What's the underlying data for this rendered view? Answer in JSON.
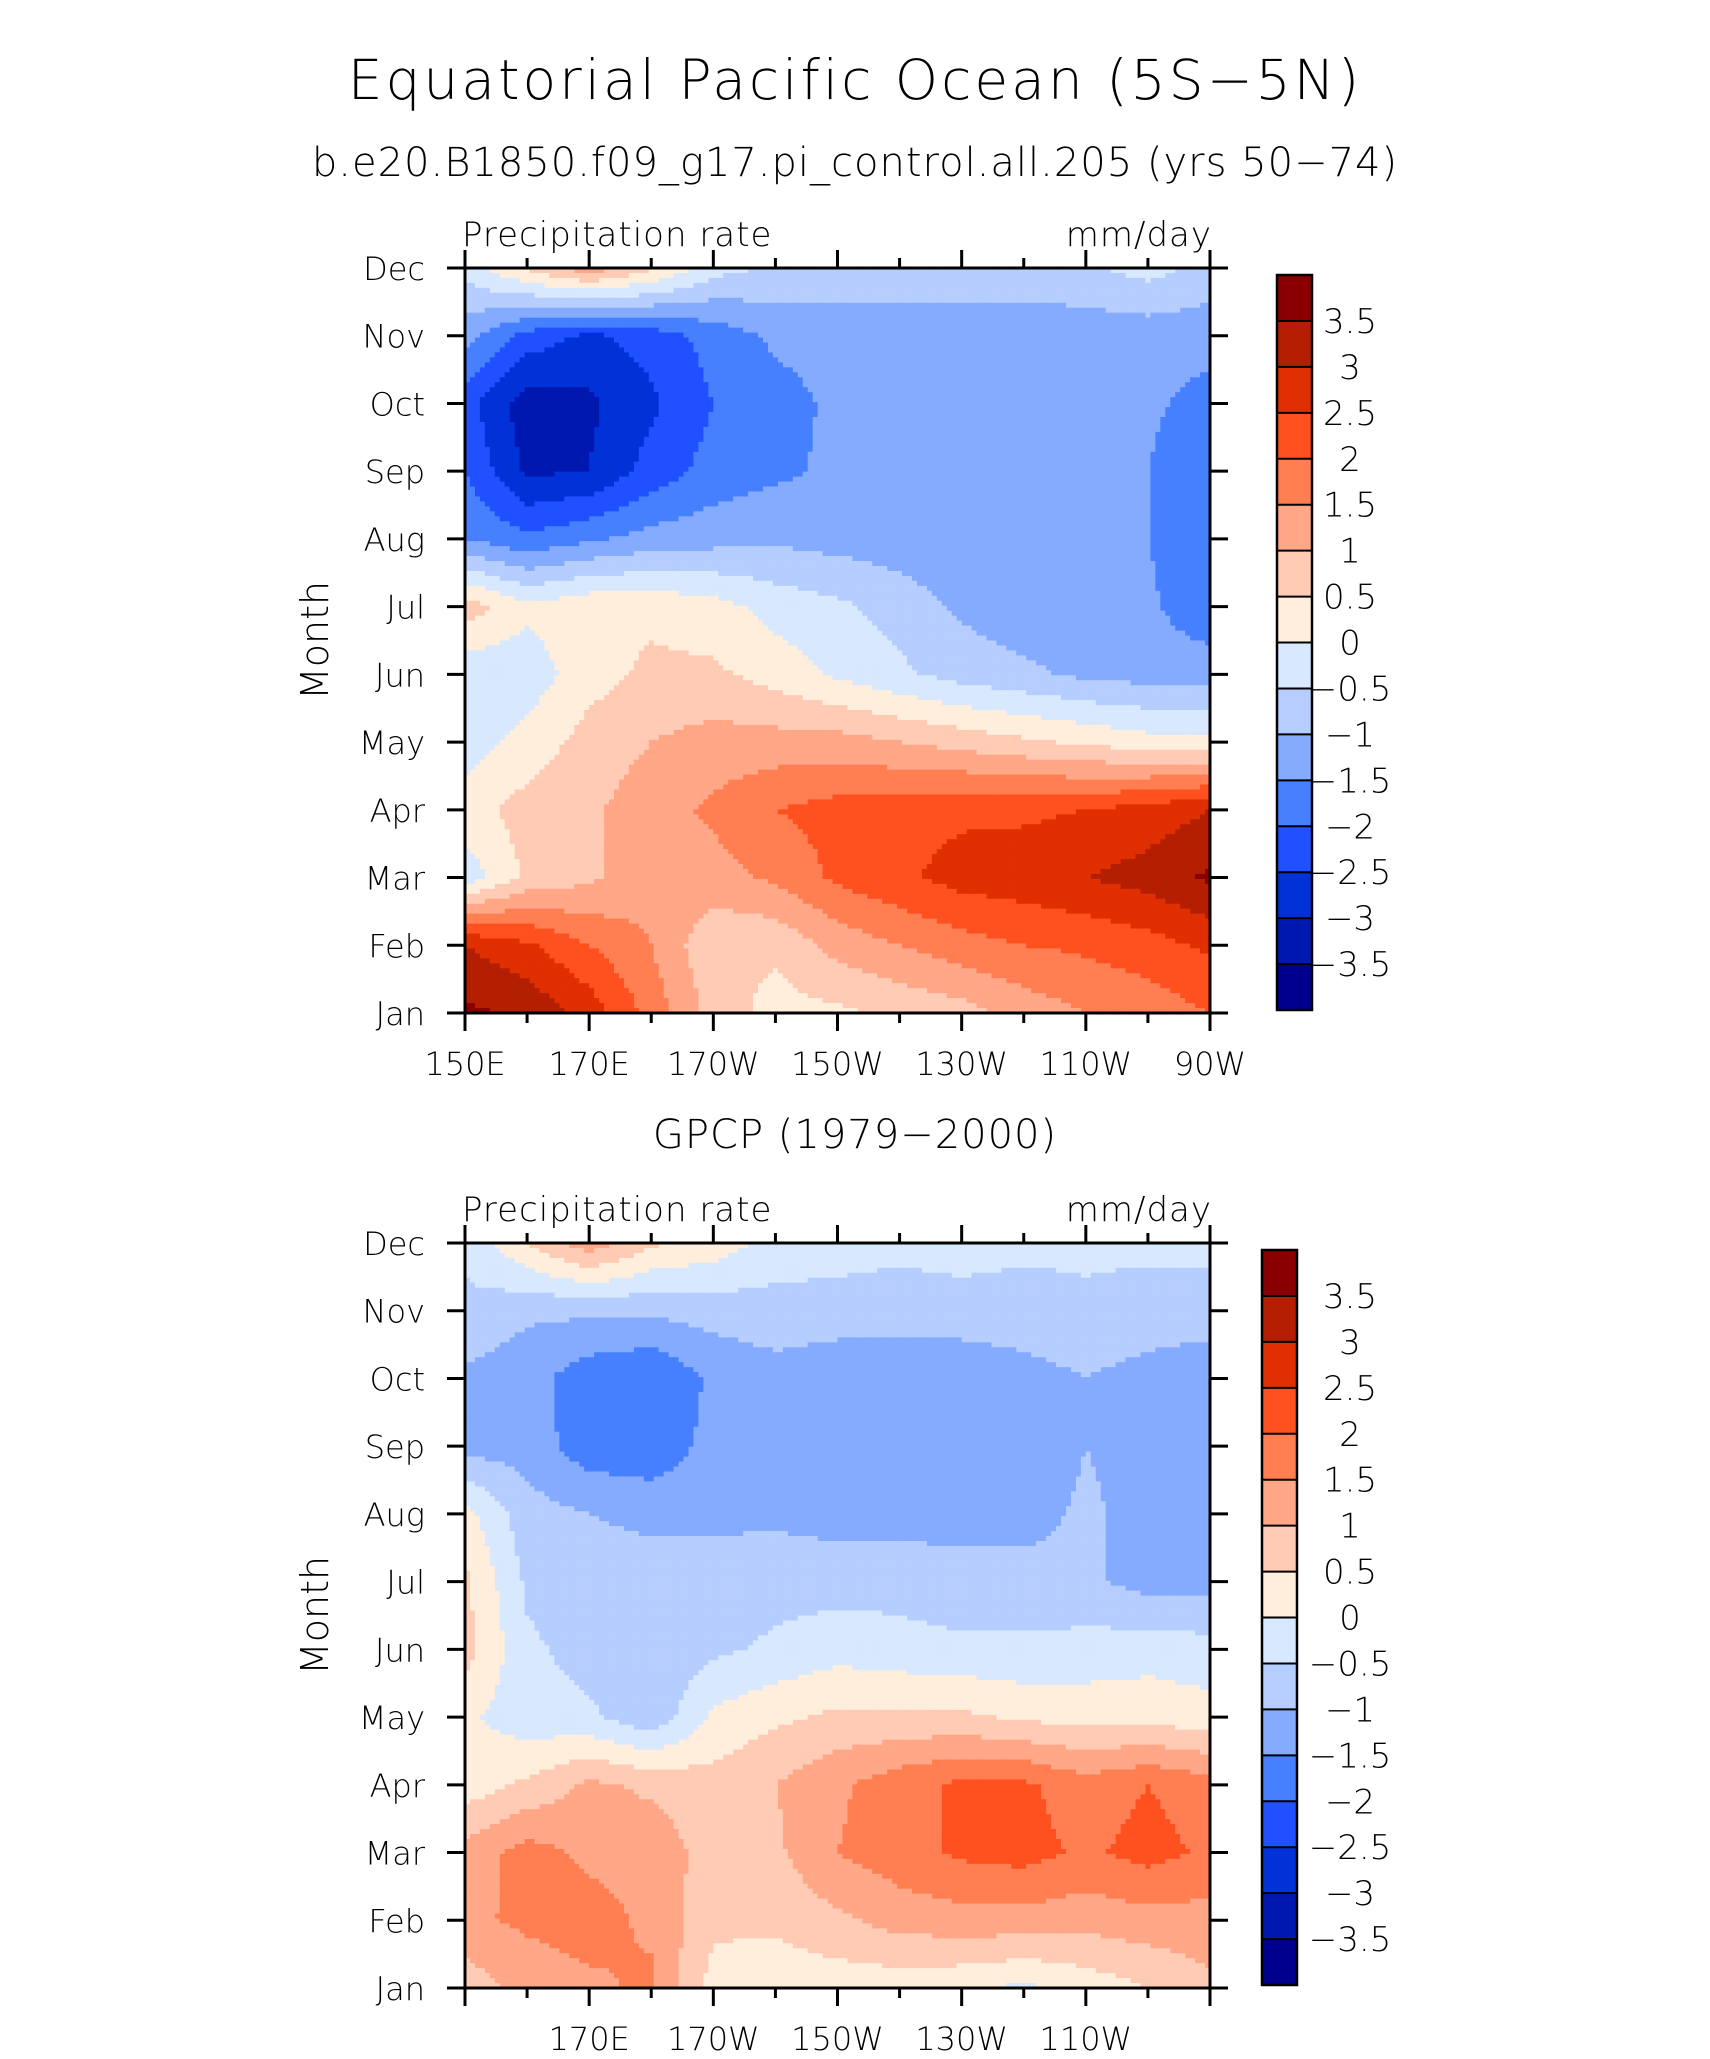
{
  "header": {
    "title": "Equatorial Pacific Ocean (5S−5N)",
    "case_name": "b.e20.B1850.f09_g17.pi_control.all.205 (yrs 50−74)",
    "obs_name": "GPCP (1979−2000)"
  },
  "chart_data": [
    {
      "type": "heatmap",
      "left_label": "Precipitation rate",
      "right_label": "mm/day",
      "ylabel": "Month",
      "xlabel": "",
      "x_tick_labels": [
        "150E",
        "170E",
        "170W",
        "150W",
        "130W",
        "110W",
        "90W"
      ],
      "x_tick_values": [
        150,
        170,
        190,
        210,
        230,
        250,
        270
      ],
      "y_tick_labels": [
        "Jan",
        "Feb",
        "Mar",
        "Apr",
        "May",
        "Jun",
        "Jul",
        "Aug",
        "Sep",
        "Oct",
        "Nov",
        "Dec"
      ],
      "xlim": [
        150,
        270
      ],
      "colorbar_labels": [
        "3.5",
        "3",
        "2.5",
        "2",
        "1.5",
        "1",
        "0.5",
        "0",
        "−0.5",
        "−1",
        "−1.5",
        "−2",
        "−2.5",
        "−3",
        "−3.5"
      ],
      "grid_x": [
        150,
        160,
        170,
        180,
        190,
        200,
        210,
        220,
        230,
        240,
        250,
        260,
        270
      ],
      "values": [
        [
          3.6,
          3.4,
          2.8,
          1.8,
          0.8,
          0.3,
          0.4,
          0.6,
          0.8,
          1.2,
          1.5,
          1.7,
          2.0
        ],
        [
          3.0,
          2.6,
          2.0,
          1.5,
          0.6,
          0.6,
          1.2,
          1.5,
          1.8,
          2.0,
          2.1,
          2.3,
          2.6
        ],
        [
          -0.3,
          0.6,
          0.9,
          1.3,
          1.3,
          1.6,
          2.1,
          2.4,
          2.7,
          2.8,
          3.0,
          3.2,
          3.6
        ],
        [
          0.3,
          0.7,
          0.9,
          1.3,
          1.6,
          2.0,
          2.2,
          2.3,
          2.4,
          2.4,
          2.5,
          2.7,
          3.0
        ],
        [
          -0.3,
          0.2,
          0.7,
          1.0,
          1.2,
          1.2,
          1.2,
          1.0,
          0.8,
          0.6,
          0.4,
          0.2,
          0.1
        ],
        [
          -0.4,
          -0.3,
          0.3,
          0.6,
          0.6,
          0.3,
          -0.1,
          -0.4,
          -0.7,
          -0.9,
          -1.1,
          -1.2,
          -1.2
        ],
        [
          0.8,
          0.1,
          0.4,
          0.4,
          0.2,
          -0.2,
          -0.4,
          -0.7,
          -1.1,
          -1.3,
          -1.4,
          -1.4,
          -1.9
        ],
        [
          -1.5,
          -1.9,
          -1.6,
          -1.3,
          -1.2,
          -1.1,
          -1.2,
          -1.3,
          -1.4,
          -1.4,
          -1.4,
          -1.5,
          -1.9
        ],
        [
          -2.0,
          -3.1,
          -3.0,
          -2.3,
          -1.8,
          -1.6,
          -1.4,
          -1.4,
          -1.4,
          -1.4,
          -1.4,
          -1.5,
          -1.9
        ],
        [
          -2.3,
          -3.3,
          -3.1,
          -2.6,
          -2.0,
          -1.7,
          -1.4,
          -1.4,
          -1.4,
          -1.4,
          -1.4,
          -1.4,
          -1.7
        ],
        [
          -1.3,
          -2.2,
          -2.6,
          -2.3,
          -1.8,
          -1.4,
          -1.3,
          -1.3,
          -1.3,
          -1.3,
          -1.3,
          -1.3,
          -1.3
        ],
        [
          -0.3,
          0.6,
          1.3,
          0.6,
          -0.3,
          -0.6,
          -0.7,
          -0.7,
          -0.7,
          -0.7,
          -0.6,
          -0.3,
          -0.7
        ]
      ]
    },
    {
      "type": "heatmap",
      "left_label": "Precipitation rate",
      "right_label": "mm/day",
      "ylabel": "Month",
      "xlabel": "",
      "x_tick_labels": [
        "170E",
        "170W",
        "150W",
        "130W",
        "110W"
      ],
      "x_tick_values": [
        170,
        190,
        210,
        230,
        250
      ],
      "y_tick_labels": [
        "Jan",
        "Feb",
        "Mar",
        "Apr",
        "May",
        "Jun",
        "Jul",
        "Aug",
        "Sep",
        "Oct",
        "Nov",
        "Dec"
      ],
      "xlim": [
        150,
        270
      ],
      "colorbar_labels": [
        "3.5",
        "3",
        "2.5",
        "2",
        "1.5",
        "1",
        "0.5",
        "0",
        "−0.5",
        "−1",
        "−1.5",
        "−2",
        "−2.5",
        "−3",
        "−3.5"
      ],
      "grid_x": [
        150,
        160,
        170,
        180,
        190,
        200,
        210,
        220,
        230,
        240,
        250,
        260,
        270
      ],
      "values": [
        [
          0.7,
          1.2,
          1.4,
          1.6,
          0.3,
          0.2,
          0.2,
          0.2,
          0.1,
          -0.1,
          0.2,
          0.5,
          0.9
        ],
        [
          1.4,
          1.6,
          1.7,
          1.4,
          0.6,
          0.6,
          0.9,
          1.2,
          1.3,
          1.3,
          1.2,
          1.3,
          1.3
        ],
        [
          1.2,
          1.7,
          1.4,
          1.3,
          0.8,
          0.9,
          1.5,
          1.8,
          2.1,
          2.2,
          1.9,
          2.2,
          1.9
        ],
        [
          0.2,
          0.6,
          1.1,
          0.9,
          0.7,
          1.0,
          1.4,
          1.8,
          2.1,
          2.1,
          1.7,
          2.0,
          1.7
        ],
        [
          0.1,
          -0.3,
          -0.4,
          -0.9,
          0.1,
          0.4,
          0.6,
          0.6,
          0.6,
          0.4,
          0.3,
          0.3,
          0.2
        ],
        [
          0.7,
          -0.4,
          -0.7,
          -0.9,
          -0.6,
          -0.4,
          -0.2,
          -0.3,
          -0.4,
          -0.4,
          -0.3,
          -0.2,
          -0.3
        ],
        [
          0.6,
          -0.6,
          -0.8,
          -0.8,
          -0.8,
          -0.7,
          -0.7,
          -0.7,
          -0.8,
          -0.8,
          -0.9,
          -1.2,
          -1.2
        ],
        [
          0.2,
          -0.8,
          -1.0,
          -1.1,
          -1.1,
          -1.1,
          -1.2,
          -1.2,
          -1.2,
          -1.2,
          -0.9,
          -1.2,
          -1.2
        ],
        [
          -1.2,
          -1.2,
          -1.8,
          -1.9,
          -1.3,
          -1.2,
          -1.4,
          -1.5,
          -1.4,
          -1.4,
          -1.0,
          -1.2,
          -1.5
        ],
        [
          -1.1,
          -1.3,
          -1.8,
          -2.0,
          -1.4,
          -1.2,
          -1.4,
          -1.5,
          -1.4,
          -1.2,
          -1.0,
          -1.2,
          -1.4
        ],
        [
          -0.6,
          -0.9,
          -0.9,
          -0.9,
          -0.8,
          -0.7,
          -0.7,
          -0.7,
          -0.7,
          -0.7,
          -0.6,
          -0.7,
          -0.7
        ],
        [
          -0.4,
          0.5,
          1.3,
          0.6,
          0.3,
          -0.2,
          -0.3,
          -0.4,
          -0.3,
          -0.4,
          -0.4,
          -0.4,
          -0.4
        ]
      ]
    }
  ],
  "colors": {
    "levels_low_to_high": [
      "#00008f",
      "#0018b0",
      "#0032d8",
      "#2050ff",
      "#4680ff",
      "#85abff",
      "#b5cdff",
      "#d7e8ff",
      "#ffeedc",
      "#ffcbb4",
      "#ffa787",
      "#ff7e52",
      "#ff5020",
      "#e02f00",
      "#b31f00",
      "#8a0000"
    ]
  }
}
